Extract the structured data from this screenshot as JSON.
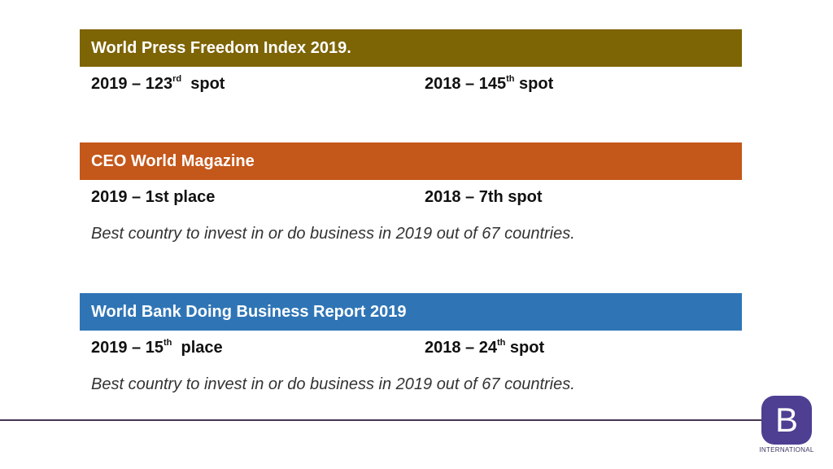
{
  "sections": [
    {
      "title": "World Press Freedom Index 2019.",
      "color": "#7d6404",
      "left": {
        "main": "2019 – 123",
        "sup": "rd",
        "after": "  spot"
      },
      "right": {
        "main": "2018 – 145",
        "sup": "th",
        "after": " spot"
      },
      "note": ""
    },
    {
      "title": "CEO World Magazine",
      "color": "#c4571a",
      "left": {
        "main": "2019 – 1st place",
        "sup": "",
        "after": ""
      },
      "right": {
        "main": "2018 – 7th spot",
        "sup": "",
        "after": ""
      },
      "note": "Best country to invest in or do business in 2019 out of 67 countries."
    },
    {
      "title": "World Bank Doing Business Report 2019",
      "color": "#2f75b6",
      "left": {
        "main": "2019 – 15",
        "sup": "th",
        "after": "  place"
      },
      "right": {
        "main": "2018 – 24",
        "sup": "th",
        "after": " spot"
      },
      "note": "Best country to invest in or do business in 2019 out of 67 countries."
    }
  ],
  "logo": {
    "letter": "B",
    "caption": "INTERNATIONAL",
    "color": "#4e3f92"
  }
}
